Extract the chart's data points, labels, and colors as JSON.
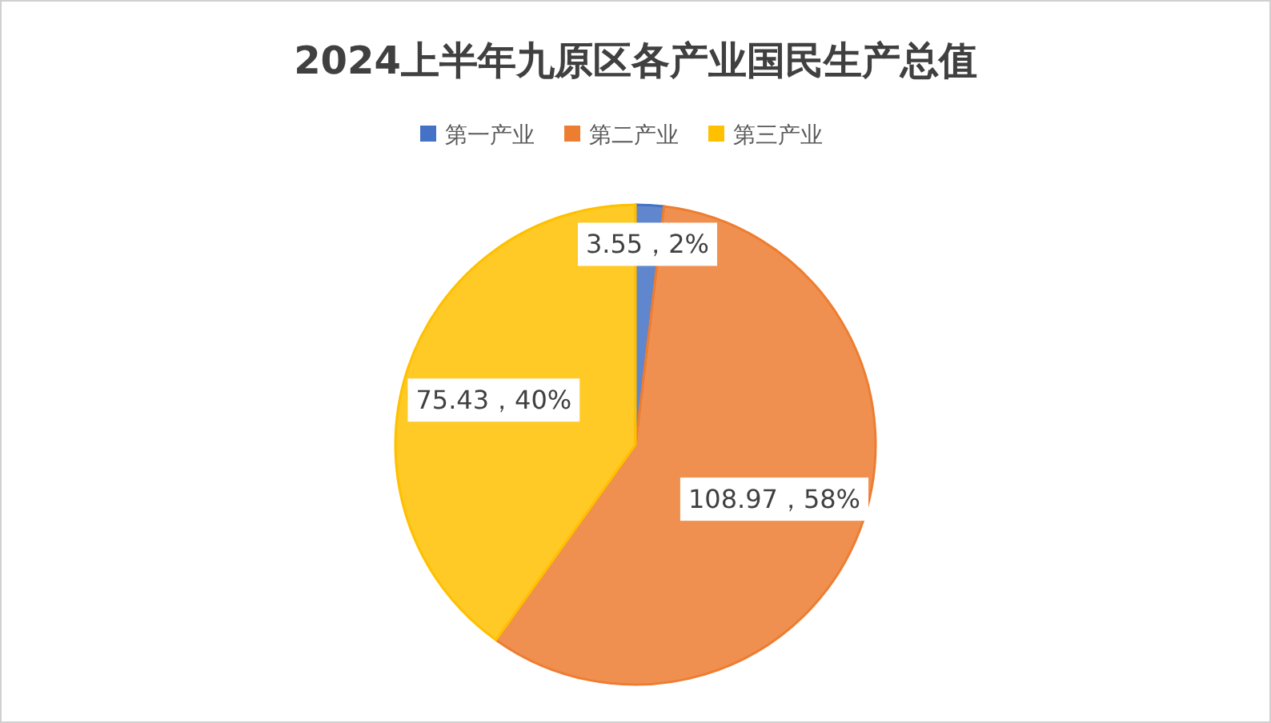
{
  "chart_data": {
    "type": "pie",
    "title": "2024上半年九原区各产业国民生产总值",
    "categories": [
      "第一产业",
      "第二产业",
      "第三产业"
    ],
    "values": [
      3.55,
      108.97,
      75.43
    ],
    "colors": [
      "#4472c4",
      "#ed7d31",
      "#ffc000"
    ],
    "value_labels": [
      "3.55，2%",
      "108.97，58%",
      "75.43，40%"
    ],
    "legend": "top"
  }
}
